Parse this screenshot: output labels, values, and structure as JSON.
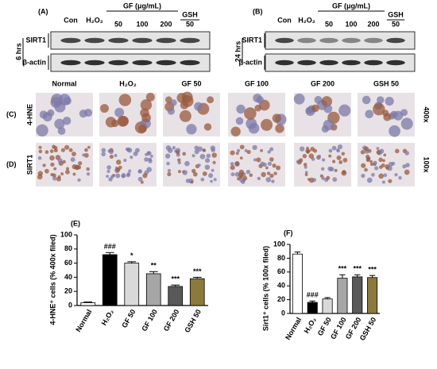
{
  "blots": [
    {
      "panel": "(A)",
      "time": "6 hrs",
      "group": "GF (μg/mL)",
      "control": "GSH",
      "lanes": [
        "Con",
        "H₂O₂",
        "50",
        "100",
        "200",
        "50"
      ],
      "rows": [
        "SIRT1",
        "β-actin"
      ]
    },
    {
      "panel": "(B)",
      "time": "24 hrs",
      "group": "GF (μg/mL)",
      "control": "GSH",
      "lanes": [
        "Con",
        "H₂O₂",
        "50",
        "100",
        "200",
        "50"
      ],
      "rows": [
        "SIRT1",
        "β-actin"
      ]
    }
  ],
  "micrographs": {
    "columns": [
      "Normal",
      "H₂O₂",
      "GF 50",
      "GF 100",
      "GF 200",
      "GSH 50"
    ],
    "rows": [
      {
        "panel": "(C)",
        "stain": "4-HNE",
        "magnification": "400x"
      },
      {
        "panel": "(D)",
        "stain": "SIRT1",
        "magnification": "100x"
      }
    ]
  },
  "chart_data": [
    {
      "type": "bar",
      "panel": "(E)",
      "ylabel": "4-HNE⁺ cells (% 400x filed)",
      "categories": [
        "Normal",
        "H₂O₂",
        "GF 50",
        "GF 100",
        "GF 200",
        "GSH 50"
      ],
      "values": [
        4,
        72,
        60,
        45,
        27,
        38
      ],
      "errors": [
        1,
        3,
        2,
        3,
        2,
        2
      ],
      "colors": [
        "#ffffff",
        "#000000",
        "#d9d9d9",
        "#a6a6a6",
        "#595959",
        "#8c7a3c"
      ],
      "annotations": [
        null,
        "###",
        "*",
        "**",
        "***",
        "***"
      ],
      "ylim": [
        0,
        100
      ],
      "yticks": [
        0,
        20,
        40,
        60,
        80,
        100
      ]
    },
    {
      "type": "bar",
      "panel": "(F)",
      "ylabel": "Sirt1⁺ cells (% 100x filed)",
      "categories": [
        "Normal",
        "H₂O₂",
        "GF 50",
        "GF 100",
        "GF 200",
        "GSH 50"
      ],
      "values": [
        86,
        16,
        21,
        51,
        53,
        52
      ],
      "errors": [
        3,
        2,
        2,
        5,
        3,
        3
      ],
      "colors": [
        "#ffffff",
        "#000000",
        "#d9d9d9",
        "#a6a6a6",
        "#595959",
        "#8c7a3c"
      ],
      "annotations": [
        null,
        "###",
        null,
        "***",
        "***",
        "***"
      ],
      "ylim": [
        0,
        100
      ],
      "yticks": [
        0,
        20,
        40,
        60,
        80,
        100
      ]
    }
  ]
}
